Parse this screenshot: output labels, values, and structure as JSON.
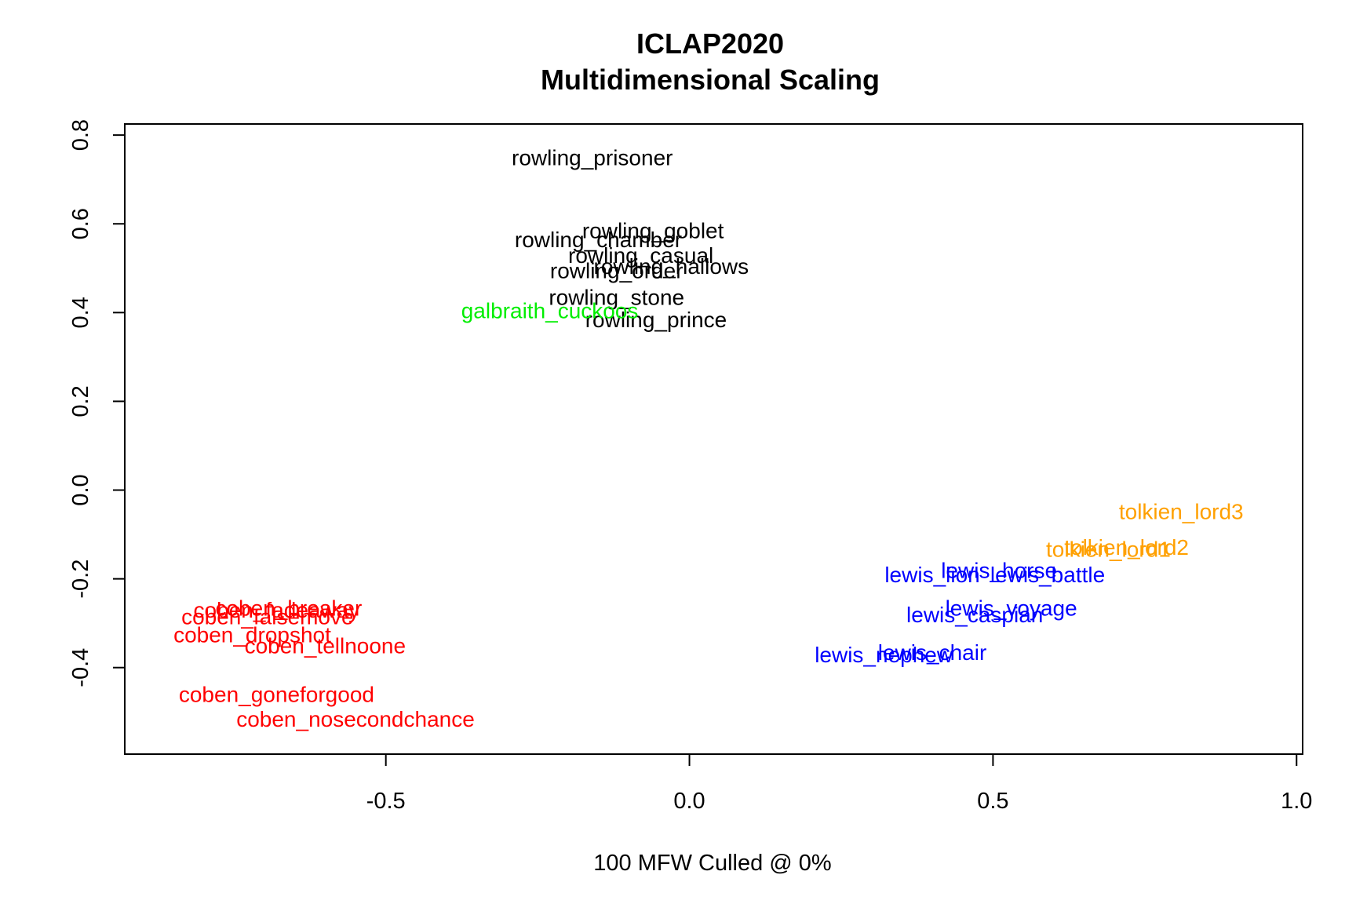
{
  "chart_data": {
    "type": "scatter",
    "title": [
      "ICLAP2020",
      "Multidimensional Scaling"
    ],
    "xlabel": "100 MFW  Culled @ 0%",
    "ylabel": "",
    "xlim": [
      -0.93,
      1.01
    ],
    "ylim": [
      -0.595,
      0.825
    ],
    "xticks": [
      -0.5,
      0.0,
      0.5,
      1.0
    ],
    "xtick_labels": [
      "-0.5",
      "0.0",
      "0.5",
      "1.0"
    ],
    "yticks": [
      -0.4,
      -0.2,
      0.0,
      0.2,
      0.4,
      0.6,
      0.8
    ],
    "ytick_labels": [
      "-0.4",
      "-0.2",
      "0.0",
      "0.2",
      "0.4",
      "0.6",
      "0.8"
    ],
    "grid": false,
    "legend": "none",
    "colors": {
      "rowling": "#000000",
      "galbraith": "#00ee00",
      "coben": "#ff0000",
      "lewis": "#0000ff",
      "tolkien": "#ffa000"
    },
    "points": [
      {
        "label": "rowling_prisoner",
        "x": -0.16,
        "y": 0.75,
        "group": "rowling"
      },
      {
        "label": "rowling_goblet",
        "x": -0.06,
        "y": 0.585,
        "group": "rowling"
      },
      {
        "label": "rowling_chamber",
        "x": -0.15,
        "y": 0.565,
        "group": "rowling"
      },
      {
        "label": "rowling_casual",
        "x": -0.08,
        "y": 0.53,
        "group": "rowling"
      },
      {
        "label": "rowling_hallows",
        "x": -0.03,
        "y": 0.505,
        "group": "rowling"
      },
      {
        "label": "rowling_order",
        "x": -0.12,
        "y": 0.495,
        "group": "rowling"
      },
      {
        "label": "rowling_stone",
        "x": -0.12,
        "y": 0.435,
        "group": "rowling"
      },
      {
        "label": "rowling_prince",
        "x": -0.055,
        "y": 0.385,
        "group": "rowling"
      },
      {
        "label": "galbraith_cuckoos",
        "x": -0.23,
        "y": 0.405,
        "group": "galbraith"
      },
      {
        "label": "coben_breaker",
        "x": -0.66,
        "y": -0.265,
        "group": "coben"
      },
      {
        "label": "coben_fadeaway",
        "x": -0.68,
        "y": -0.27,
        "group": "coben"
      },
      {
        "label": "coben_falsemove",
        "x": -0.695,
        "y": -0.285,
        "group": "coben"
      },
      {
        "label": "coben_dropshot",
        "x": -0.72,
        "y": -0.325,
        "group": "coben"
      },
      {
        "label": "coben_tellnoone",
        "x": -0.6,
        "y": -0.35,
        "group": "coben"
      },
      {
        "label": "coben_goneforgood",
        "x": -0.68,
        "y": -0.46,
        "group": "coben"
      },
      {
        "label": "coben_nosecondchance",
        "x": -0.55,
        "y": -0.515,
        "group": "coben"
      },
      {
        "label": "lewis_horse",
        "x": 0.51,
        "y": -0.18,
        "group": "lewis"
      },
      {
        "label": "lewis_lion",
        "x": 0.4,
        "y": -0.19,
        "group": "lewis"
      },
      {
        "label": "lewis_battle",
        "x": 0.59,
        "y": -0.19,
        "group": "lewis"
      },
      {
        "label": "lewis_voyage",
        "x": 0.53,
        "y": -0.265,
        "group": "lewis"
      },
      {
        "label": "lewis_caspian",
        "x": 0.47,
        "y": -0.28,
        "group": "lewis"
      },
      {
        "label": "lewis_chair",
        "x": 0.4,
        "y": -0.365,
        "group": "lewis"
      },
      {
        "label": "lewis_nephew",
        "x": 0.32,
        "y": -0.37,
        "group": "lewis"
      },
      {
        "label": "tolkien_lord3",
        "x": 0.81,
        "y": -0.048,
        "group": "tolkien"
      },
      {
        "label": "tolkien_lord2",
        "x": 0.72,
        "y": -0.128,
        "group": "tolkien"
      },
      {
        "label": "tolkien_lord1",
        "x": 0.69,
        "y": -0.133,
        "group": "tolkien"
      }
    ]
  }
}
